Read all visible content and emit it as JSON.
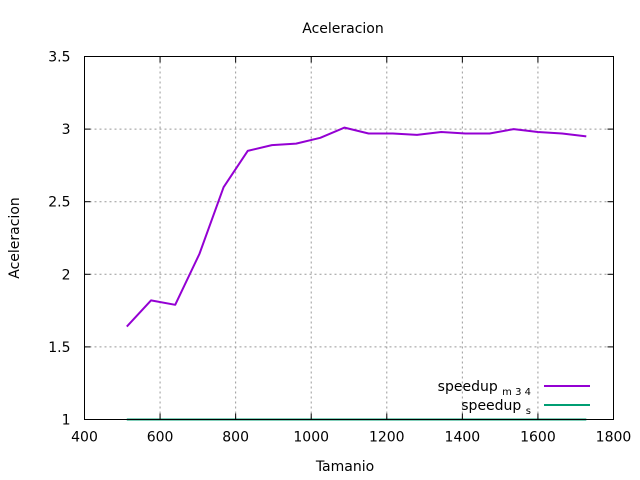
{
  "chart_data": {
    "type": "line",
    "title": "Aceleracion",
    "xlabel": "Tamanio",
    "ylabel": "Aceleracion",
    "xlim": [
      400,
      1800
    ],
    "ylim": [
      1,
      3.5
    ],
    "xticks": [
      "400",
      "600",
      "800",
      "1000",
      "1200",
      "1400",
      "1600",
      "1800"
    ],
    "yticks": [
      "1",
      "1.5",
      "2",
      "2.5",
      "3",
      "3.5"
    ],
    "grid": true,
    "legend_position": "bottom-right",
    "series": [
      {
        "name": "speedup",
        "name_sub": "m 3 4",
        "color": "#9400d3",
        "x": [
          512,
          576,
          640,
          704,
          768,
          832,
          896,
          960,
          1024,
          1088,
          1152,
          1216,
          1280,
          1344,
          1408,
          1472,
          1536,
          1600,
          1664,
          1728
        ],
        "y": [
          1.64,
          1.82,
          1.79,
          2.14,
          2.6,
          2.85,
          2.89,
          2.9,
          2.94,
          3.01,
          2.97,
          2.97,
          2.96,
          2.98,
          2.97,
          2.97,
          3.0,
          2.98,
          2.97,
          2.95
        ]
      },
      {
        "name": "speedup",
        "name_sub": "s",
        "color": "#009e73",
        "x": [
          512,
          576,
          640,
          704,
          768,
          832,
          896,
          960,
          1024,
          1088,
          1152,
          1216,
          1280,
          1344,
          1408,
          1472,
          1536,
          1600,
          1664,
          1728
        ],
        "y": [
          1,
          1,
          1,
          1,
          1,
          1,
          1,
          1,
          1,
          1,
          1,
          1,
          1,
          1,
          1,
          1,
          1,
          1,
          1,
          1
        ]
      }
    ]
  }
}
